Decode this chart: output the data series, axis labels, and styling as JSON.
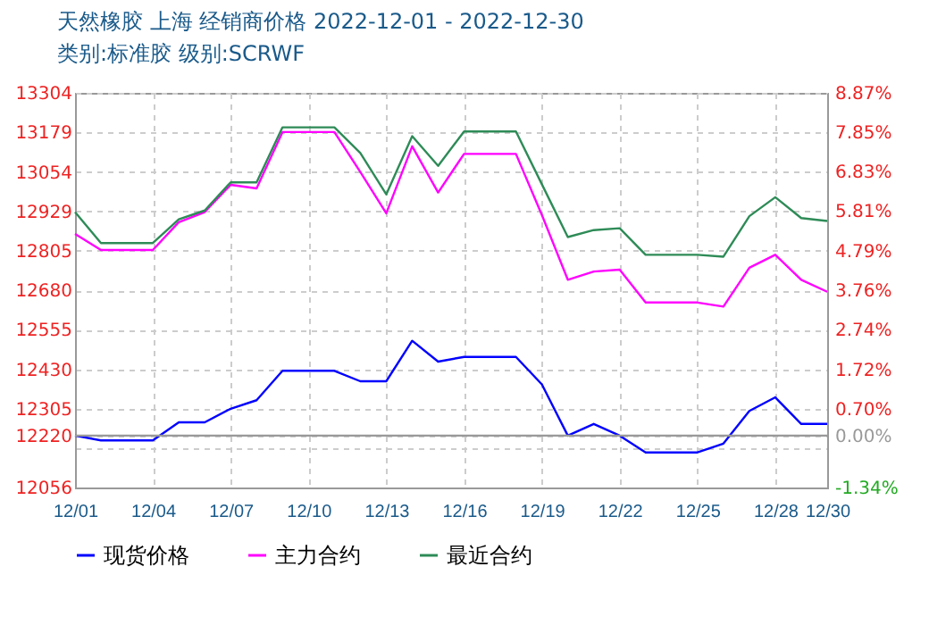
{
  "chart_data": {
    "type": "line",
    "title": "天然橡胶 上海 经销商价格 2022-12-01 - 2022-12-30",
    "subtitle": "类别:标准胶 级别:SCRWF",
    "x": [
      "2022-12-01",
      "2022-12-02",
      "2022-12-03",
      "2022-12-04",
      "2022-12-05",
      "2022-12-06",
      "2022-12-07",
      "2022-12-08",
      "2022-12-09",
      "2022-12-10",
      "2022-12-11",
      "2022-12-12",
      "2022-12-13",
      "2022-12-14",
      "2022-12-15",
      "2022-12-16",
      "2022-12-17",
      "2022-12-18",
      "2022-12-19",
      "2022-12-20",
      "2022-12-21",
      "2022-12-22",
      "2022-12-23",
      "2022-12-24",
      "2022-12-25",
      "2022-12-26",
      "2022-12-27",
      "2022-12-28",
      "2022-12-29",
      "2022-12-30"
    ],
    "series": [
      {
        "name": "现货价格",
        "color": "#0000ff",
        "values": [
          12220,
          12205,
          12205,
          12205,
          12262,
          12262,
          12305,
          12332,
          12425,
          12425,
          12425,
          12392,
          12392,
          12520,
          12454,
          12469,
          12469,
          12469,
          12382,
          12220,
          12257,
          12220,
          12167,
          12167,
          12167,
          12195,
          12298,
          12341,
          12257,
          12257
        ]
      },
      {
        "name": "主力合约",
        "color": "#ff00ff",
        "values": [
          12858,
          12807,
          12807,
          12807,
          12895,
          12927,
          13013,
          13002,
          13180,
          13180,
          13180,
          13054,
          12923,
          13135,
          12989,
          13111,
          13111,
          13111,
          12918,
          12713,
          12739,
          12745,
          12641,
          12641,
          12641,
          12628,
          12751,
          12792,
          12713,
          12675
        ]
      },
      {
        "name": "最近合约",
        "color": "#2e8b57",
        "values": [
          12927,
          12829,
          12829,
          12829,
          12904,
          12932,
          13021,
          13021,
          13195,
          13195,
          13195,
          13114,
          12983,
          13167,
          13073,
          13182,
          13182,
          13182,
          13015,
          12848,
          12870,
          12876,
          12792,
          12792,
          12792,
          12786,
          12914,
          12974,
          12908,
          12899
        ]
      }
    ],
    "xlim": [
      "2022-12-01",
      "2022-12-30"
    ],
    "xticks": [
      {
        "value": "2022-12-01",
        "label": "12/01"
      },
      {
        "value": "2022-12-04",
        "label": "12/04"
      },
      {
        "value": "2022-12-07",
        "label": "12/07"
      },
      {
        "value": "2022-12-10",
        "label": "12/10"
      },
      {
        "value": "2022-12-13",
        "label": "12/13"
      },
      {
        "value": "2022-12-16",
        "label": "12/16"
      },
      {
        "value": "2022-12-19",
        "label": "12/19"
      },
      {
        "value": "2022-12-22",
        "label": "12/22"
      },
      {
        "value": "2022-12-25",
        "label": "12/25"
      },
      {
        "value": "2022-12-28",
        "label": "12/28"
      },
      {
        "value": "2022-12-30",
        "label": "12/30"
      }
    ],
    "ylim": [
      12056,
      13304
    ],
    "yticks": [
      12056,
      {
        "value": 12180,
        "label": null
      },
      12220,
      12305,
      12430,
      12555,
      12680,
      12805,
      12929,
      13054,
      13179,
      13304
    ],
    "y2lim": [
      -1.34,
      8.87
    ],
    "y2ticks": [
      {
        "value": -1.34,
        "label": "-1.34%"
      },
      {
        "value": 0,
        "label": "0.00%"
      },
      {
        "value": 0.7,
        "label": "0.70%"
      },
      {
        "value": 1.72,
        "label": "1.72%"
      },
      {
        "value": 2.74,
        "label": "2.74%"
      },
      {
        "value": 3.76,
        "label": "3.76%"
      },
      {
        "value": 4.79,
        "label": "4.79%"
      },
      {
        "value": 5.81,
        "label": "5.81%"
      },
      {
        "value": 6.83,
        "label": "6.83%"
      },
      {
        "value": 7.85,
        "label": "7.85%"
      },
      {
        "value": 8.87,
        "label": "8.87%"
      }
    ],
    "ref_lines": [
      {
        "axis": "y",
        "value": 12220,
        "color": "#999999"
      }
    ],
    "grid": true,
    "legend": "bottom",
    "marker": "none",
    "line_style": "solid"
  }
}
